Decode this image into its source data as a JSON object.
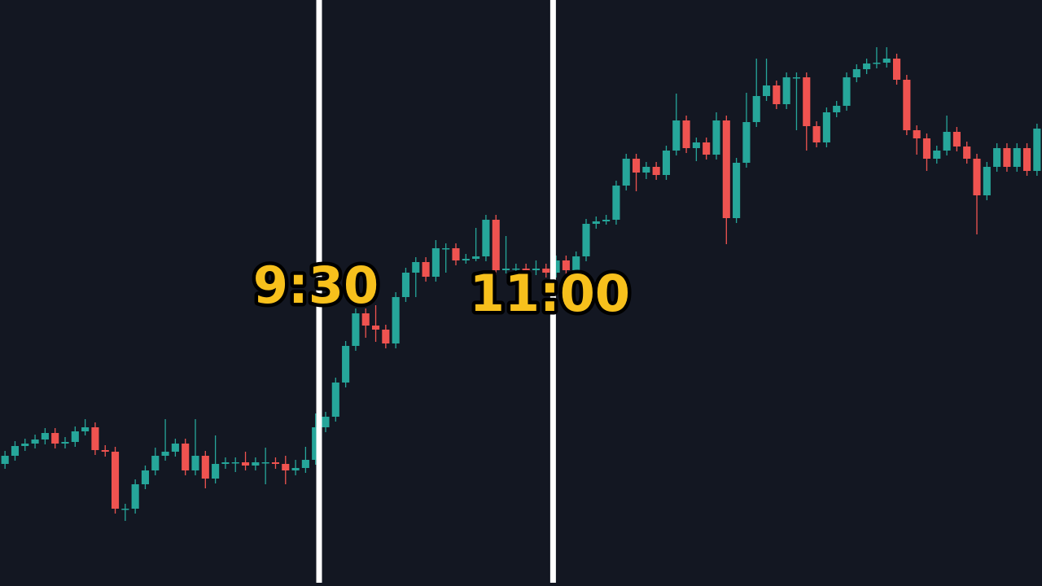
{
  "chart_data": {
    "type": "candlestick",
    "up_color": "#26a69a",
    "down_color": "#ef5350",
    "xlim": [
      0,
      104
    ],
    "ylim": [
      0,
      720
    ],
    "open": [
      150,
      160,
      172,
      175,
      180,
      188,
      175,
      177,
      190,
      195,
      167,
      165,
      95,
      95,
      125,
      142,
      160,
      165,
      175,
      142,
      160,
      132,
      150,
      152,
      152,
      148,
      152,
      152,
      150,
      142,
      145,
      155,
      195,
      208,
      250,
      295,
      335,
      320,
      315,
      298,
      355,
      385,
      398,
      380,
      415,
      415,
      400,
      402,
      405,
      450,
      388,
      390,
      390,
      388,
      390,
      385,
      400,
      388,
      405,
      445,
      448,
      450,
      492,
      525,
      508,
      515,
      505,
      535,
      572,
      538,
      545,
      530,
      572,
      452,
      520,
      570,
      602,
      615,
      592,
      625,
      625,
      565,
      545,
      582,
      590,
      625,
      635,
      642,
      643,
      648,
      622,
      560,
      550,
      525,
      535,
      558,
      540,
      525,
      480,
      515,
      538,
      515,
      538,
      510
    ],
    "high": [
      166,
      178,
      181,
      186,
      194,
      194,
      183,
      196,
      205,
      201,
      173,
      171,
      101,
      131,
      148,
      170,
      205,
      181,
      181,
      205,
      166,
      185,
      158,
      158,
      165,
      158,
      170,
      158,
      160,
      155,
      171,
      212,
      214,
      256,
      301,
      341,
      341,
      345,
      321,
      361,
      391,
      404,
      404,
      425,
      421,
      421,
      408,
      440,
      456,
      456,
      430,
      396,
      396,
      400,
      396,
      406,
      406,
      411,
      451,
      454,
      456,
      498,
      531,
      531,
      521,
      521,
      541,
      605,
      578,
      551,
      551,
      582,
      578,
      526,
      606,
      648,
      648,
      621,
      631,
      631,
      631,
      571,
      588,
      596,
      631,
      641,
      648,
      662,
      662,
      654,
      628,
      566,
      556,
      541,
      578,
      564,
      546,
      531,
      521,
      544,
      544,
      544,
      544,
      568
    ],
    "low": [
      144,
      154,
      166,
      169,
      174,
      169,
      169,
      171,
      185,
      161,
      159,
      89,
      80,
      89,
      119,
      136,
      154,
      159,
      136,
      136,
      120,
      126,
      144,
      140,
      142,
      142,
      125,
      144,
      125,
      136,
      139,
      149,
      189,
      202,
      244,
      289,
      305,
      300,
      292,
      292,
      349,
      355,
      374,
      374,
      385,
      394,
      396,
      399,
      399,
      382,
      384,
      370,
      370,
      382,
      379,
      379,
      382,
      382,
      399,
      439,
      444,
      444,
      486,
      485,
      500,
      499,
      499,
      529,
      532,
      522,
      524,
      524,
      420,
      446,
      514,
      564,
      596,
      586,
      586,
      560,
      535,
      539,
      539,
      576,
      584,
      619,
      629,
      636,
      637,
      616,
      554,
      530,
      510,
      519,
      529,
      534,
      519,
      432,
      474,
      509,
      509,
      509,
      504,
      504
    ],
    "close": [
      160,
      172,
      175,
      180,
      188,
      175,
      177,
      190,
      195,
      167,
      165,
      95,
      95,
      125,
      142,
      160,
      165,
      175,
      142,
      160,
      132,
      150,
      152,
      152,
      148,
      152,
      152,
      150,
      142,
      145,
      155,
      195,
      208,
      250,
      295,
      335,
      320,
      315,
      298,
      355,
      385,
      398,
      380,
      415,
      415,
      400,
      402,
      405,
      450,
      388,
      390,
      390,
      388,
      390,
      385,
      400,
      388,
      405,
      445,
      448,
      450,
      492,
      525,
      508,
      515,
      505,
      535,
      572,
      538,
      545,
      530,
      572,
      452,
      520,
      570,
      602,
      615,
      592,
      625,
      625,
      565,
      545,
      582,
      590,
      625,
      635,
      642,
      643,
      648,
      622,
      560,
      550,
      525,
      535,
      558,
      540,
      525,
      480,
      515,
      538,
      515,
      538,
      510,
      562
    ],
    "annotations": [
      {
        "text": "9:30",
        "x": 31.85
      },
      {
        "text": "11:00",
        "x": 55.2
      }
    ]
  }
}
